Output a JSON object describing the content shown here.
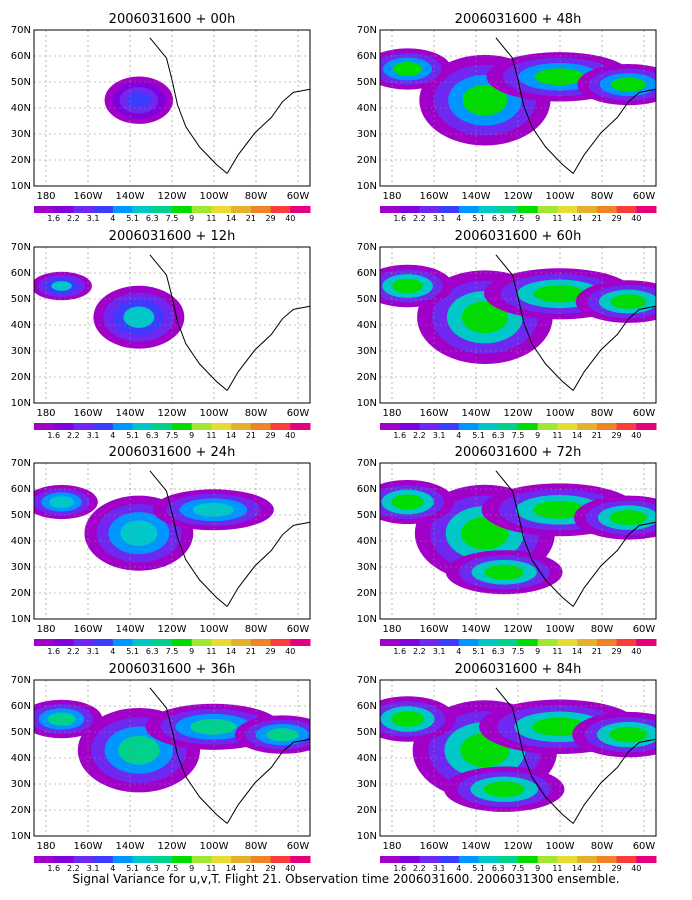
{
  "colorbar": {
    "labels": [
      "1.6",
      "2.2",
      "3.1",
      "4",
      "5.1",
      "6.3",
      "7.5",
      "9",
      "11",
      "14",
      "21",
      "29",
      "40"
    ],
    "colors": [
      "#a000c8",
      "#8200dc",
      "#6e28f0",
      "#3c3cff",
      "#0096ff",
      "#00c8c8",
      "#00d28c",
      "#00dc00",
      "#a0e632",
      "#e6dc32",
      "#e6af2d",
      "#f08228",
      "#fa3c3c",
      "#e6007d"
    ]
  },
  "axes": {
    "lon_labels": [
      "180",
      "160W",
      "140W",
      "120W",
      "100W",
      "80W",
      "60W"
    ],
    "lat_labels": [
      "10N",
      "20N",
      "30N",
      "40N",
      "50N",
      "60N",
      "70N"
    ]
  },
  "panels": [
    {
      "title": "2006031600 + 00h",
      "level": 0.1
    },
    {
      "title": "2006031600 + 48h",
      "level": 0.8
    },
    {
      "title": "2006031600 + 12h",
      "level": 0.35
    },
    {
      "title": "2006031600 + 60h",
      "level": 0.85
    },
    {
      "title": "2006031600 + 24h",
      "level": 0.55
    },
    {
      "title": "2006031600 + 72h",
      "level": 0.9
    },
    {
      "title": "2006031600 + 36h",
      "level": 0.7
    },
    {
      "title": "2006031600 + 84h",
      "level": 0.95
    }
  ],
  "caption": "Signal Variance for u,v,T. Flight 21. Observation time 2006031600. 2006031300 ensemble."
}
